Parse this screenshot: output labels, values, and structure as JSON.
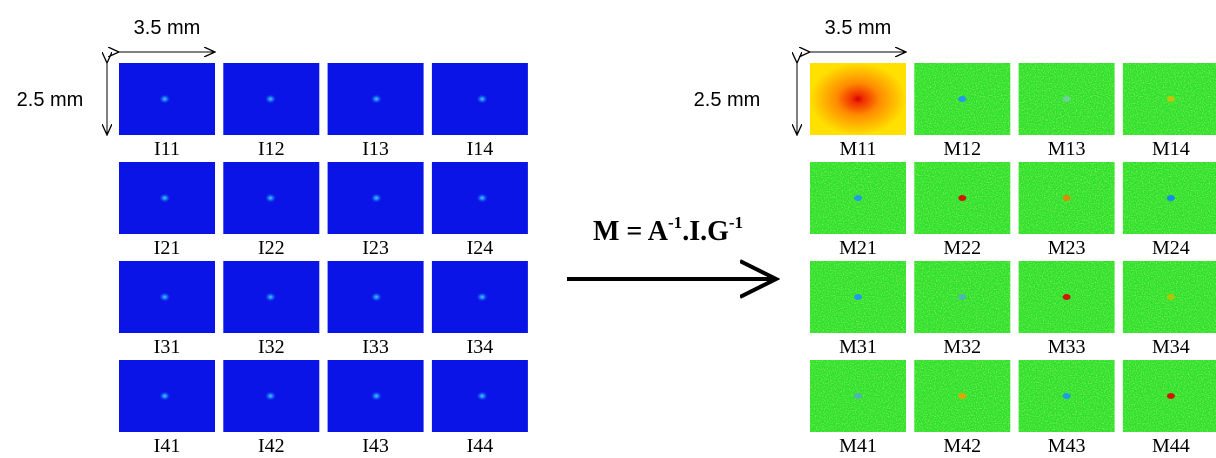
{
  "input_grid": {
    "width_label": "3.5 mm",
    "height_label": "2.5 mm",
    "labels": [
      [
        "I11",
        "I12",
        "I13",
        "I14"
      ],
      [
        "I21",
        "I22",
        "I23",
        "I24"
      ],
      [
        "I31",
        "I32",
        "I33",
        "I34"
      ],
      [
        "I41",
        "I42",
        "I43",
        "I44"
      ]
    ]
  },
  "formula": {
    "parts": [
      "M = A",
      "-1",
      ".I.G",
      "-1"
    ]
  },
  "output_grid": {
    "width_label": "3.5 mm",
    "height_label": "2.5 mm",
    "labels": [
      [
        "M11",
        "M12",
        "M13",
        "M14"
      ],
      [
        "M21",
        "M22",
        "M23",
        "M24"
      ],
      [
        "M31",
        "M32",
        "M33",
        "M34"
      ],
      [
        "M41",
        "M42",
        "M43",
        "M44"
      ]
    ]
  }
}
